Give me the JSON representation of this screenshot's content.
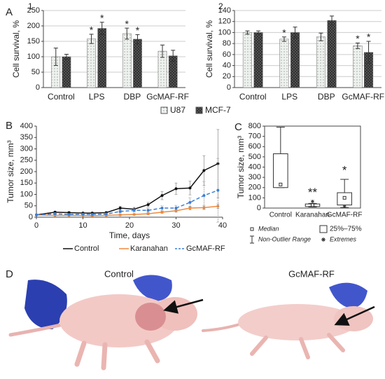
{
  "chart_data": [
    {
      "type": "bar",
      "panel_letter": "A",
      "panel": "1",
      "ylabel": "Cell survival, %",
      "categories": [
        "Control",
        "LPS",
        "DBP",
        "GcMAF-RF"
      ],
      "ylim": [
        0,
        250
      ],
      "yticks": [
        0,
        50,
        100,
        150,
        200,
        250
      ],
      "grid": true,
      "legend": "bottom",
      "series": [
        {
          "name": "U87",
          "color": "#eef2ee",
          "pattern": "dots",
          "values": [
            100,
            158,
            175,
            118
          ],
          "errors": [
            28,
            15,
            18,
            20
          ],
          "significance": [
            null,
            "*",
            "*",
            null
          ]
        },
        {
          "name": "MCF-7",
          "color": "#5a5a5a",
          "pattern": "cross",
          "values": [
            100,
            192,
            157,
            103
          ],
          "errors": [
            8,
            20,
            15,
            18
          ],
          "significance": [
            null,
            "*",
            "*",
            null
          ]
        }
      ]
    },
    {
      "type": "bar",
      "panel": "2",
      "ylabel": "Cell survival, %",
      "categories": [
        "Control",
        "LPS",
        "DBP",
        "GcMAF-RF"
      ],
      "ylim": [
        0,
        140
      ],
      "yticks": [
        0,
        20,
        40,
        60,
        80,
        100,
        120,
        140
      ],
      "grid": true,
      "series": [
        {
          "color": "#eef2ee",
          "pattern": "dots",
          "values": [
            100,
            88,
            92,
            76
          ],
          "errors": [
            3,
            4,
            7,
            5
          ],
          "significance": [
            null,
            "*",
            null,
            "*"
          ]
        },
        {
          "color": "#5a5a5a",
          "pattern": "cross",
          "values": [
            100,
            100,
            122,
            64
          ],
          "errors": [
            3,
            10,
            8,
            20
          ],
          "significance": [
            null,
            null,
            null,
            "*"
          ]
        }
      ]
    },
    {
      "type": "line",
      "panel": "B",
      "ylabel": "Tumor size, mm³",
      "xlabel": "Time, days",
      "x": [
        0,
        4,
        7,
        10,
        12,
        15,
        18,
        21,
        24,
        27,
        30,
        33,
        36,
        39
      ],
      "xlim": [
        0,
        40
      ],
      "xticks": [
        0,
        10,
        20,
        30,
        40
      ],
      "ylim": [
        0,
        400
      ],
      "yticks": [
        0,
        50,
        100,
        150,
        200,
        250,
        300,
        350,
        400
      ],
      "legend": "bottom",
      "series": [
        {
          "name": "Control",
          "color": "#111111",
          "dashed": false,
          "values": [
            10,
            22,
            20,
            18,
            18,
            20,
            40,
            35,
            55,
            95,
            125,
            128,
            205,
            235
          ],
          "errors": [
            3,
            5,
            4,
            4,
            4,
            5,
            8,
            8,
            10,
            18,
            25,
            30,
            65,
            150
          ]
        },
        {
          "name": "Karanahan",
          "color": "#f08a3c",
          "dashed": false,
          "values": [
            10,
            8,
            8,
            8,
            7,
            8,
            10,
            12,
            15,
            22,
            28,
            40,
            42,
            48
          ],
          "errors": [
            2,
            2,
            2,
            2,
            2,
            2,
            3,
            3,
            4,
            5,
            6,
            8,
            8,
            10
          ]
        },
        {
          "name": "GcMAF-RF",
          "color": "#3a7fd5",
          "dashed": true,
          "values": [
            10,
            15,
            12,
            13,
            12,
            14,
            25,
            30,
            30,
            40,
            40,
            65,
            95,
            118
          ],
          "errors": [
            2,
            4,
            3,
            3,
            3,
            4,
            6,
            8,
            8,
            10,
            12,
            20,
            60,
            140
          ]
        }
      ]
    },
    {
      "type": "box",
      "panel": "C",
      "ylabel": "Tumor size, mm³",
      "categories": [
        "Control",
        "Karanahan",
        "GcMAF-RF"
      ],
      "ylim": [
        0,
        800
      ],
      "yticks": [
        0,
        100,
        200,
        300,
        400,
        500,
        600,
        700,
        800
      ],
      "boxes": [
        {
          "min": 200,
          "q1": 200,
          "median": 230,
          "q3": 530,
          "max": 790,
          "extremes": []
        },
        {
          "min": 10,
          "q1": 15,
          "median": 28,
          "q3": 40,
          "max": 45,
          "extremes": [
            65
          ]
        },
        {
          "min": 5,
          "q1": 30,
          "median": 100,
          "q3": 150,
          "max": 280,
          "extremes": [
            15
          ]
        }
      ],
      "significance": [
        null,
        "**",
        "*"
      ],
      "legend": [
        "Median",
        "25%–75%",
        "Non-Outlier Range",
        "Extremes"
      ]
    }
  ],
  "photo": {
    "panel": "D",
    "captions": [
      "Control",
      "GcMAF-RF"
    ]
  }
}
